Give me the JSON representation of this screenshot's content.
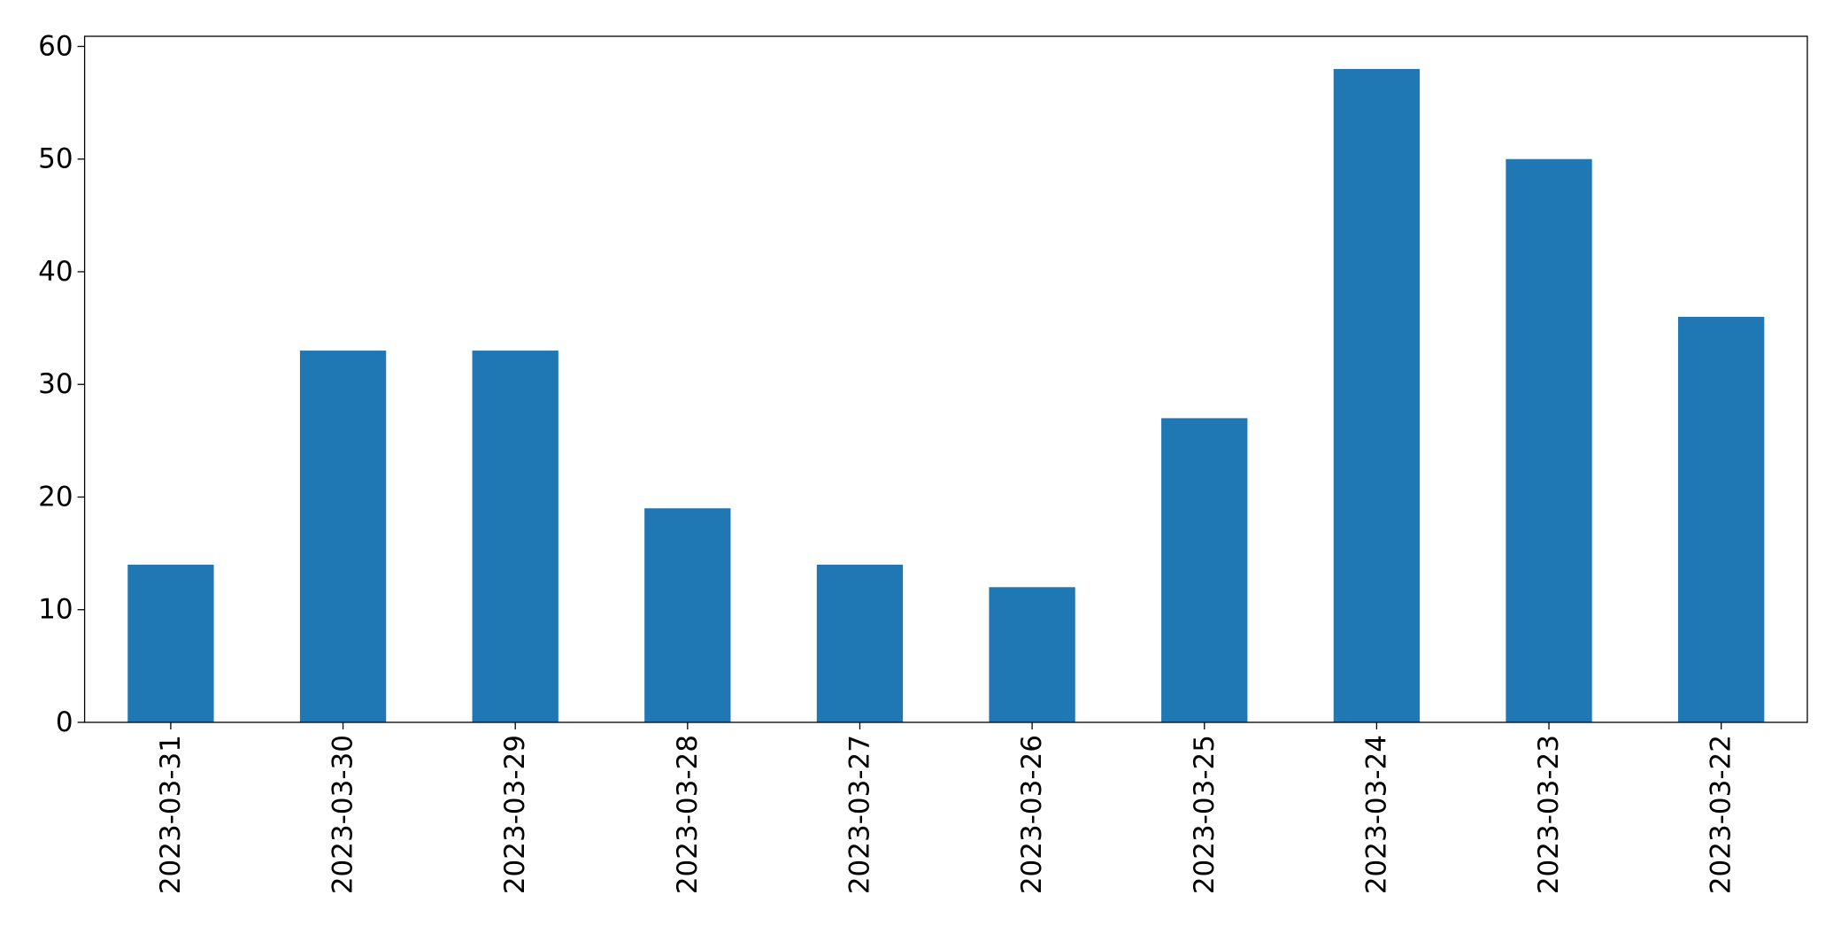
{
  "chart_data": {
    "type": "bar",
    "categories": [
      "2023-03-31",
      "2023-03-30",
      "2023-03-29",
      "2023-03-28",
      "2023-03-27",
      "2023-03-26",
      "2023-03-25",
      "2023-03-24",
      "2023-03-23",
      "2023-03-22"
    ],
    "values": [
      14,
      33,
      33,
      19,
      14,
      12,
      27,
      58,
      50,
      36
    ],
    "color": "#1f77b4",
    "ylim": [
      0,
      60.9
    ],
    "yticks": [
      0,
      10,
      20,
      30,
      40,
      50,
      60
    ],
    "grid": false
  }
}
